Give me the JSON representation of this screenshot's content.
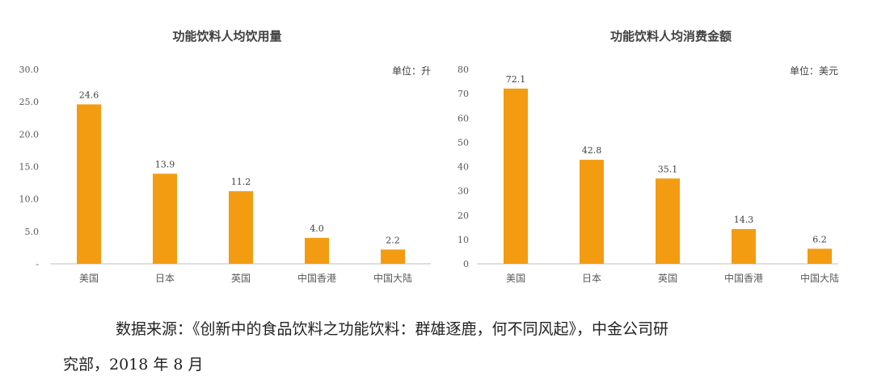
{
  "chart_data": [
    {
      "type": "bar",
      "title": "功能饮料人均饮用量",
      "unit": "单位：升",
      "categories": [
        "美国",
        "日本",
        "英国",
        "中国香港",
        "中国大陆"
      ],
      "values": [
        24.6,
        13.9,
        11.2,
        4.0,
        2.2
      ],
      "value_labels": [
        "24.6",
        "13.9",
        "11.2",
        "4.0",
        "2.2"
      ],
      "yticks": [
        "-",
        "5.0",
        "10.0",
        "15.0",
        "20.0",
        "25.0",
        "30.0"
      ],
      "ylim": [
        0,
        30
      ],
      "bar_color": "#F39C12"
    },
    {
      "type": "bar",
      "title": "功能饮料人均消费金额",
      "unit": "单位：美元",
      "categories": [
        "美国",
        "日本",
        "英国",
        "中国香港",
        "中国大陆"
      ],
      "values": [
        72.1,
        42.8,
        35.1,
        14.3,
        6.2
      ],
      "value_labels": [
        "72.1",
        "42.8",
        "35.1",
        "14.3",
        "6.2"
      ],
      "yticks": [
        "0",
        "10",
        "20",
        "30",
        "40",
        "50",
        "60",
        "70",
        "80"
      ],
      "ylim": [
        0,
        80
      ],
      "bar_color": "#F39C12"
    }
  ],
  "source": {
    "line1": "数据来源：《创新中的食品饮料之功能饮料：群雄逐鹿，何不同风起》，中金公司研",
    "line2": "究部，2018 年 8 月"
  }
}
